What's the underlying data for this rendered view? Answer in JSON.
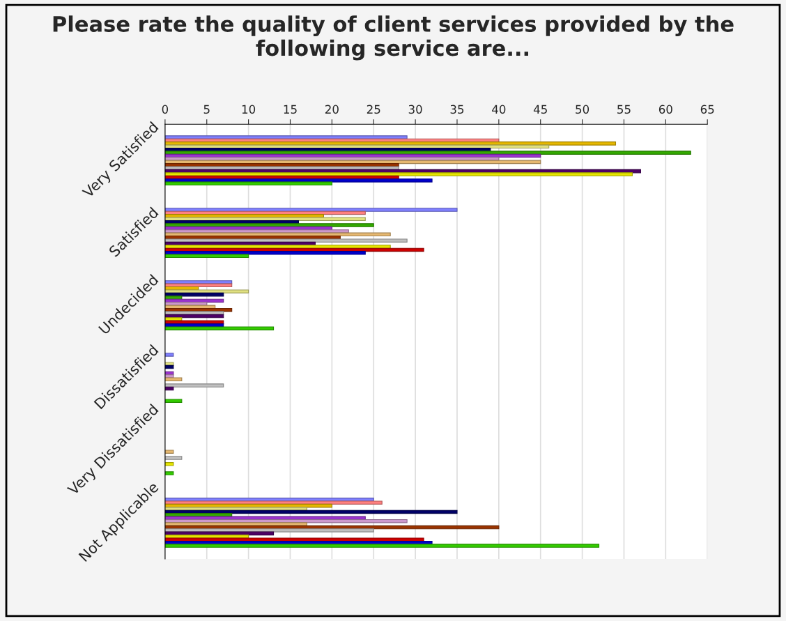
{
  "chart_data": {
    "type": "bar",
    "orientation": "horizontal",
    "title": "Please rate the quality of client services provided by the following service are...",
    "categories": [
      "Very Satisfied",
      "Satisfied",
      "Undecided",
      "Dissatisfied",
      "Very Dissatisfied",
      "Not Applicable"
    ],
    "xlim": [
      0,
      65
    ],
    "xticks": [
      0,
      5,
      10,
      15,
      20,
      25,
      30,
      35,
      40,
      45,
      50,
      55,
      60,
      65
    ],
    "grid": "x",
    "legend": false,
    "series": [
      {
        "color": "#8080ff",
        "values": [
          29,
          35,
          8,
          1,
          0,
          25
        ]
      },
      {
        "color": "#ff8080",
        "values": [
          40,
          24,
          8,
          0,
          0,
          26
        ]
      },
      {
        "color": "#e6b800",
        "values": [
          54,
          19,
          4,
          0,
          0,
          20
        ]
      },
      {
        "color": "#e0e080",
        "values": [
          46,
          24,
          10,
          1,
          0,
          17
        ]
      },
      {
        "color": "#000066",
        "values": [
          39,
          16,
          7,
          1,
          0,
          35
        ]
      },
      {
        "color": "#33aa00",
        "values": [
          63,
          25,
          2,
          0,
          0,
          8
        ]
      },
      {
        "color": "#9933cc",
        "values": [
          45,
          20,
          7,
          1,
          0,
          24
        ]
      },
      {
        "color": "#cc99cc",
        "values": [
          40,
          22,
          5,
          1,
          0,
          29
        ]
      },
      {
        "color": "#e6b870",
        "values": [
          45,
          27,
          6,
          2,
          1,
          17
        ]
      },
      {
        "color": "#993300",
        "values": [
          28,
          21,
          8,
          0,
          0,
          40
        ]
      },
      {
        "color": "#c0c0c0",
        "values": [
          28,
          29,
          7,
          7,
          2,
          25
        ]
      },
      {
        "color": "#4d0066",
        "values": [
          57,
          18,
          7,
          1,
          0,
          13
        ]
      },
      {
        "color": "#e6e600",
        "values": [
          56,
          27,
          2,
          0,
          1,
          10
        ]
      },
      {
        "color": "#cc0000",
        "values": [
          28,
          31,
          7,
          0,
          0,
          31
        ]
      },
      {
        "color": "#0000cc",
        "values": [
          32,
          24,
          7,
          0,
          0,
          32
        ]
      },
      {
        "color": "#33cc00",
        "values": [
          20,
          10,
          13,
          2,
          1,
          52
        ]
      }
    ]
  }
}
